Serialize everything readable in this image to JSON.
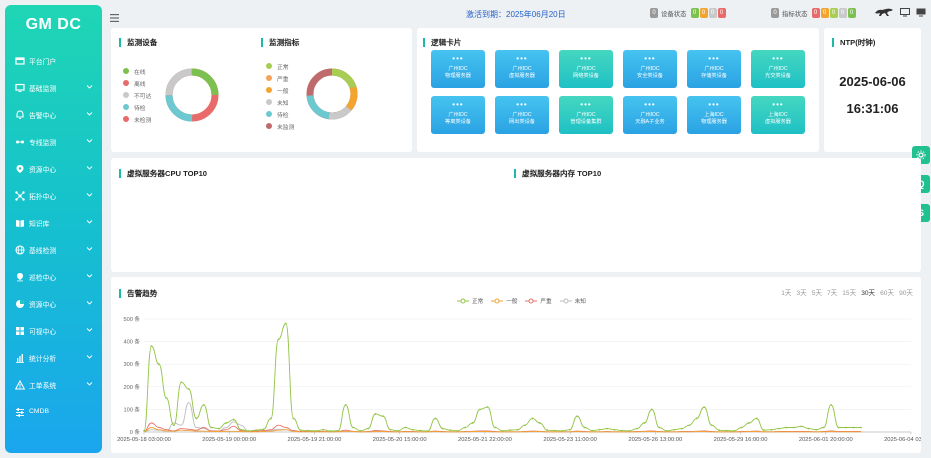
{
  "sidebar": {
    "brand": "GM DC",
    "items": [
      {
        "label": "平台门户",
        "icon": "portal-icon"
      },
      {
        "label": "基础监测",
        "icon": "monitor-icon"
      },
      {
        "label": "告警中心",
        "icon": "alarm-icon"
      },
      {
        "label": "专线监测",
        "icon": "line-icon"
      },
      {
        "label": "资源中心",
        "icon": "location-icon"
      },
      {
        "label": "拓扑中心",
        "icon": "topology-icon"
      },
      {
        "label": "知识库",
        "icon": "book-icon"
      },
      {
        "label": "基线检测",
        "icon": "globe-icon"
      },
      {
        "label": "巡检中心",
        "icon": "pin-icon"
      },
      {
        "label": "资源中心",
        "icon": "pie-icon"
      },
      {
        "label": "可视中心",
        "icon": "windows-icon"
      },
      {
        "label": "统计分析",
        "icon": "stats-icon"
      },
      {
        "label": "工单系统",
        "icon": "warning-icon"
      },
      {
        "label": "CMDB",
        "icon": "sliders-icon"
      }
    ]
  },
  "topbar": {
    "activation": "激活到期：2025年06月20日",
    "device_status_label": "设备状态",
    "device_status_counts": [
      "0",
      "0",
      "0",
      "0"
    ],
    "device_status_prefix": "0",
    "metric_status_label": "指标状态",
    "metric_status_counts": [
      "0",
      "0",
      "0",
      "0",
      "0"
    ],
    "metric_status_prefix": "0"
  },
  "monitor_devices": {
    "title": "监测设备",
    "legend": [
      {
        "label": "在线",
        "color": "#7cc04f"
      },
      {
        "label": "离线",
        "color": "#e96a6a"
      },
      {
        "label": "不可达",
        "color": "#c9c9c9"
      },
      {
        "label": "待检",
        "color": "#6cc9d0"
      },
      {
        "label": "未检测",
        "color": "#e96a6a"
      }
    ]
  },
  "monitor_metrics": {
    "title": "监测指标",
    "legend": [
      {
        "label": "正常",
        "color": "#a7cd52"
      },
      {
        "label": "严重",
        "color": "#f5a25a"
      },
      {
        "label": "一般",
        "color": "#f3a42f"
      },
      {
        "label": "未知",
        "color": "#c9c9c9"
      },
      {
        "label": "待检",
        "color": "#6cc9d0"
      },
      {
        "label": "未监测",
        "color": "#c06b6b"
      }
    ]
  },
  "logic_cards": {
    "title": "逻辑卡片",
    "items": [
      {
        "line1": "广州IDC",
        "line2": "物理服务器",
        "style": "blue"
      },
      {
        "line1": "广州IDC",
        "line2": "虚拟服务器",
        "style": "blue"
      },
      {
        "line1": "广州IDC",
        "line2": "网络类设备",
        "style": "teal"
      },
      {
        "line1": "广州IDC",
        "line2": "安全类设备",
        "style": "blue"
      },
      {
        "line1": "广州IDC",
        "line2": "存储类设备",
        "style": "blue"
      },
      {
        "line1": "广州IDC",
        "line2": "光交类设备",
        "style": "teal"
      },
      {
        "line1": "广州IDC",
        "line2": "等离类设备",
        "style": "blue"
      },
      {
        "line1": "广州IDC",
        "line2": "网出类设备",
        "style": "blue"
      },
      {
        "line1": "广州IDC",
        "line2": "管理设备集群",
        "style": "teal"
      },
      {
        "line1": "广州IDC",
        "line2": "天融A子业务",
        "style": "blue"
      },
      {
        "line1": "上海IDC",
        "line2": "物理服务器",
        "style": "blue"
      },
      {
        "line1": "上海IDC",
        "line2": "虚拟服务器",
        "style": "teal"
      }
    ]
  },
  "ntp": {
    "title": "NTP(时钟)",
    "date": "2025-06-06",
    "time": "16:31:06"
  },
  "cpu_top": {
    "title": "虚拟服务器CPU TOP10"
  },
  "mem_top": {
    "title": "虚拟服务器内存 TOP10"
  },
  "float_buttons": [
    "⚙",
    "Q",
    "S"
  ],
  "chart_data": {
    "type": "line",
    "title": "告警趋势",
    "range_tabs": [
      "1天",
      "3天",
      "5天",
      "7天",
      "15天",
      "30天",
      "60天",
      "90天"
    ],
    "active_range": "30天",
    "y_ticks": [
      "500 条",
      "400 条",
      "300 条",
      "200 条",
      "100 条",
      "0 条"
    ],
    "ylim": [
      0,
      500
    ],
    "x_ticks": [
      "2025-05-18 03:00:00",
      "2025-05-19 00:00:00",
      "2025-05-19 21:00:00",
      "2025-05-20 15:00:00",
      "2025-05-21 22:00:00",
      "2025-05-23 11:00:00",
      "2025-05-26 13:00:00",
      "2025-05-29 16:00:00",
      "2025-06-01 20:00:00",
      "2025-06-04 03:00:00"
    ],
    "series": [
      {
        "name": "正常",
        "color": "#94c447",
        "values": [
          5,
          380,
          300,
          150,
          30,
          220,
          190,
          60,
          120,
          20,
          15,
          40,
          55,
          10,
          5,
          8,
          12,
          60,
          410,
          480,
          60,
          8,
          6,
          5,
          10,
          4,
          6,
          120,
          20,
          5,
          15,
          80,
          70,
          10,
          5,
          20,
          10,
          6,
          4,
          60,
          15,
          8,
          5,
          20,
          40,
          100,
          110,
          20,
          5,
          8,
          10,
          30,
          60,
          40,
          8,
          6,
          5,
          10,
          70,
          20,
          6,
          10,
          15,
          10,
          6,
          5,
          15,
          40,
          100,
          20,
          5,
          10,
          15,
          30,
          60,
          110,
          30,
          8,
          6,
          5,
          20,
          40,
          60,
          8,
          10,
          15,
          20,
          20,
          25,
          15,
          10,
          20,
          120,
          20,
          20,
          20,
          20
        ]
      },
      {
        "name": "一般",
        "color": "#f0a437",
        "values": [
          2,
          20,
          10,
          5,
          3,
          8,
          6,
          4,
          4,
          2,
          2,
          3,
          3,
          2,
          1,
          1,
          2,
          4,
          8,
          10,
          3,
          1,
          1,
          1,
          1,
          1,
          1,
          3,
          2,
          1,
          1,
          2,
          2,
          1,
          1,
          1,
          1,
          1,
          1,
          2,
          1,
          1,
          1,
          1,
          2,
          2,
          2,
          1,
          1,
          1,
          1,
          1,
          2,
          2,
          1,
          1,
          1,
          1,
          2,
          1,
          1,
          1,
          1,
          1,
          1,
          1,
          1,
          2,
          2,
          1,
          1,
          1,
          1,
          1,
          2,
          2,
          1,
          1,
          1,
          1,
          1,
          2,
          2,
          1,
          1,
          1,
          1,
          1,
          1,
          1,
          1,
          1,
          2,
          1,
          1,
          1,
          1
        ]
      },
      {
        "name": "严重",
        "color": "#e8706a",
        "values": [
          3,
          40,
          20,
          10,
          5,
          15,
          12,
          8,
          20,
          5,
          4,
          10,
          25,
          6,
          3,
          4,
          6,
          10,
          30,
          20,
          6,
          2,
          2,
          2,
          3,
          1,
          2,
          8,
          3,
          1,
          2,
          6,
          5,
          2,
          1,
          3,
          2,
          1,
          1,
          4,
          2,
          1,
          1,
          2,
          3,
          5,
          5,
          2,
          1,
          1,
          1,
          2,
          4,
          3,
          1,
          1,
          1,
          1,
          4,
          2,
          1,
          1,
          2,
          1,
          1,
          1,
          2,
          3,
          5,
          2,
          1,
          1,
          2,
          2,
          3,
          5,
          2,
          1,
          1,
          1,
          2,
          3,
          4,
          1,
          1,
          2,
          2,
          2,
          2,
          2,
          1,
          2,
          5,
          2,
          2,
          2,
          2
        ]
      },
      {
        "name": "未知",
        "color": "#bdbdbd",
        "values": [
          1,
          10,
          8,
          4,
          40,
          30,
          130,
          20,
          15,
          5,
          4,
          20,
          45,
          30,
          3,
          4,
          6,
          8,
          12,
          10,
          4,
          1,
          1,
          1,
          2,
          1,
          1,
          3,
          2,
          1,
          1,
          2,
          2,
          1,
          1,
          1,
          1,
          1,
          1,
          2,
          1,
          1,
          1,
          1,
          2,
          2,
          2,
          1,
          1,
          1,
          1,
          1,
          2,
          2,
          1,
          1,
          1,
          1,
          2,
          1,
          1,
          1,
          1,
          1,
          1,
          1,
          1,
          2,
          2,
          1,
          1,
          1,
          1,
          1,
          2,
          2,
          1,
          1,
          1,
          1,
          1,
          2,
          2,
          1,
          1,
          1,
          1,
          1,
          1,
          1,
          1,
          1,
          2,
          1,
          1,
          1,
          1
        ]
      }
    ]
  }
}
